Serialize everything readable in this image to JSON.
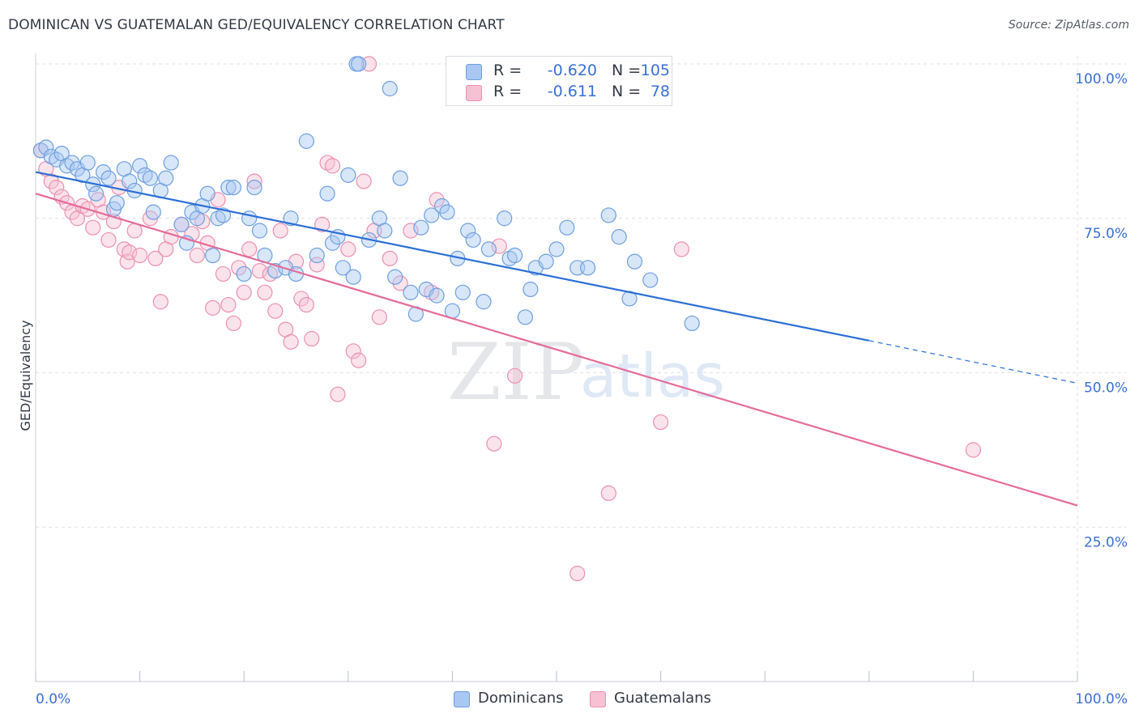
{
  "header": {
    "title": "DOMINICAN VS GUATEMALAN GED/EQUIVALENCY CORRELATION CHART",
    "source": "Source: ZipAtlas.com"
  },
  "watermark": {
    "zip": "ZIP",
    "atlas": "atlas"
  },
  "legend": {
    "rows": [
      {
        "r_label": "R =",
        "r_value": "-0.620",
        "n_label": "N =",
        "n_value": "105"
      },
      {
        "r_label": "R =",
        "r_value": "-0.611",
        "n_label": "N =",
        "n_value": "78"
      }
    ],
    "bottom": [
      "Dominicans",
      "Guatemalans"
    ]
  },
  "colors": {
    "dominican_fill": "#a9c7f2",
    "dominican_stroke": "#6e9fe0",
    "dominican_line": "#2b6fd6",
    "guatemalan_fill": "#f7c0d3",
    "guatemalan_stroke": "#ec90b0",
    "guatemalan_line": "#e56b98",
    "tick_label": "#3a6fd8",
    "grid": "#dde1e6"
  },
  "chart_data": {
    "type": "scatter",
    "title": "DOMINICAN VS GUATEMALAN GED/EQUIVALENCY CORRELATION CHART",
    "xlabel": "",
    "ylabel": "GED/Equivalency",
    "xlim": [
      0,
      100
    ],
    "ylim": [
      0,
      100
    ],
    "x_tick_labels": [
      "0.0%",
      "100.0%"
    ],
    "y_tick_labels": [
      "25.0%",
      "50.0%",
      "75.0%",
      "100.0%"
    ],
    "y_ticks": [
      25,
      50,
      75,
      100
    ],
    "grid": true,
    "series": [
      {
        "name": "Dominicans",
        "r": -0.62,
        "n": 105,
        "trend": {
          "x0": 0,
          "y0": 82.5,
          "x1": 80,
          "y1": 55.2,
          "dashed_to": 100,
          "dashed_y": 48.3
        },
        "points": [
          [
            0.5,
            86
          ],
          [
            1,
            86.5
          ],
          [
            1.5,
            85
          ],
          [
            2,
            84.5
          ],
          [
            2.5,
            85.5
          ],
          [
            3,
            83.5
          ],
          [
            3.5,
            84
          ],
          [
            4,
            83
          ],
          [
            4.5,
            82
          ],
          [
            5,
            84
          ],
          [
            5.5,
            80.5
          ],
          [
            5.8,
            79
          ],
          [
            6.5,
            82.5
          ],
          [
            7,
            81.5
          ],
          [
            7.5,
            76.5
          ],
          [
            7.8,
            77.5
          ],
          [
            8.5,
            83
          ],
          [
            9,
            81
          ],
          [
            9.5,
            79.5
          ],
          [
            10,
            83.5
          ],
          [
            10.5,
            82
          ],
          [
            11,
            81.5
          ],
          [
            11.3,
            76
          ],
          [
            12,
            79.5
          ],
          [
            12.5,
            81.5
          ],
          [
            13,
            84
          ],
          [
            14,
            74
          ],
          [
            14.5,
            71
          ],
          [
            15,
            76
          ],
          [
            15.5,
            75
          ],
          [
            16,
            77
          ],
          [
            16.5,
            79
          ],
          [
            17,
            69
          ],
          [
            17.5,
            75
          ],
          [
            18,
            75.5
          ],
          [
            18.5,
            80
          ],
          [
            19,
            80
          ],
          [
            20,
            66
          ],
          [
            20.5,
            75
          ],
          [
            21,
            80
          ],
          [
            21.5,
            73
          ],
          [
            22,
            69
          ],
          [
            23,
            66.5
          ],
          [
            24,
            67
          ],
          [
            24.5,
            75
          ],
          [
            25,
            66
          ],
          [
            26,
            87.5
          ],
          [
            27,
            69
          ],
          [
            28,
            79
          ],
          [
            28.5,
            71
          ],
          [
            29,
            72
          ],
          [
            29.5,
            67
          ],
          [
            30,
            82
          ],
          [
            30.5,
            65.5
          ],
          [
            30.8,
            100
          ],
          [
            31,
            100
          ],
          [
            32,
            71.5
          ],
          [
            33,
            75
          ],
          [
            33.5,
            73
          ],
          [
            34,
            96
          ],
          [
            34.5,
            65.5
          ],
          [
            35,
            81.5
          ],
          [
            36,
            63
          ],
          [
            36.5,
            59.5
          ],
          [
            37,
            73.5
          ],
          [
            37.5,
            63.5
          ],
          [
            38,
            75.5
          ],
          [
            38.5,
            62.5
          ],
          [
            39,
            77
          ],
          [
            39.5,
            76
          ],
          [
            40,
            60
          ],
          [
            40.5,
            68.5
          ],
          [
            41,
            63
          ],
          [
            41.5,
            73
          ],
          [
            42,
            71.5
          ],
          [
            43,
            61.5
          ],
          [
            43.5,
            70
          ],
          [
            45,
            75
          ],
          [
            45.5,
            68.5
          ],
          [
            46,
            69
          ],
          [
            47,
            59
          ],
          [
            47.5,
            63.5
          ],
          [
            48,
            67
          ],
          [
            49,
            68
          ],
          [
            50,
            70
          ],
          [
            51,
            73.5
          ],
          [
            52,
            67
          ],
          [
            53,
            67
          ],
          [
            55,
            75.5
          ],
          [
            56,
            72
          ],
          [
            57,
            62
          ],
          [
            57.5,
            68
          ],
          [
            59,
            65
          ],
          [
            63,
            58
          ]
        ]
      },
      {
        "name": "Guatemalans",
        "r": -0.611,
        "n": 78,
        "trend": {
          "x0": 0,
          "y0": 79,
          "x1": 100,
          "y1": 28.5
        },
        "points": [
          [
            0.5,
            86
          ],
          [
            1,
            83
          ],
          [
            1.5,
            81
          ],
          [
            2,
            80
          ],
          [
            2.5,
            78.5
          ],
          [
            3,
            77.5
          ],
          [
            3.5,
            76
          ],
          [
            4,
            75
          ],
          [
            4.5,
            77
          ],
          [
            5,
            76.5
          ],
          [
            5.5,
            73.5
          ],
          [
            6,
            78
          ],
          [
            6.5,
            76
          ],
          [
            7,
            71.5
          ],
          [
            7.5,
            74.5
          ],
          [
            8,
            80
          ],
          [
            8.5,
            70
          ],
          [
            8.8,
            68
          ],
          [
            9,
            69.5
          ],
          [
            9.5,
            73
          ],
          [
            10,
            69
          ],
          [
            11,
            75
          ],
          [
            11.5,
            68.5
          ],
          [
            12,
            61.5
          ],
          [
            12.5,
            70
          ],
          [
            13,
            72
          ],
          [
            14,
            74
          ],
          [
            15,
            72.5
          ],
          [
            15.5,
            69
          ],
          [
            16,
            74.5
          ],
          [
            16.5,
            71
          ],
          [
            17,
            60.5
          ],
          [
            17.5,
            78
          ],
          [
            18,
            66
          ],
          [
            18.5,
            61
          ],
          [
            19,
            58
          ],
          [
            19.5,
            67
          ],
          [
            20,
            63
          ],
          [
            20.5,
            70
          ],
          [
            21,
            81
          ],
          [
            21.5,
            66.5
          ],
          [
            22,
            63
          ],
          [
            22.5,
            66
          ],
          [
            23,
            60
          ],
          [
            23.5,
            73
          ],
          [
            24,
            57
          ],
          [
            24.5,
            55
          ],
          [
            25,
            68
          ],
          [
            25.5,
            62
          ],
          [
            26,
            61
          ],
          [
            26.5,
            55.5
          ],
          [
            27,
            67.5
          ],
          [
            27.5,
            74
          ],
          [
            28,
            84
          ],
          [
            28.5,
            83.5
          ],
          [
            29,
            46.5
          ],
          [
            30,
            70
          ],
          [
            30.5,
            53.5
          ],
          [
            31,
            52
          ],
          [
            31.5,
            81
          ],
          [
            32,
            100
          ],
          [
            32.5,
            73
          ],
          [
            33,
            59
          ],
          [
            34,
            68.5
          ],
          [
            35,
            64.5
          ],
          [
            36,
            73
          ],
          [
            38,
            63
          ],
          [
            38.5,
            78
          ],
          [
            44,
            38.5
          ],
          [
            44.5,
            70.5
          ],
          [
            46,
            49.5
          ],
          [
            52,
            17.5
          ],
          [
            55,
            30.5
          ],
          [
            60,
            42
          ],
          [
            62,
            70
          ],
          [
            90,
            37.5
          ]
        ]
      }
    ]
  }
}
